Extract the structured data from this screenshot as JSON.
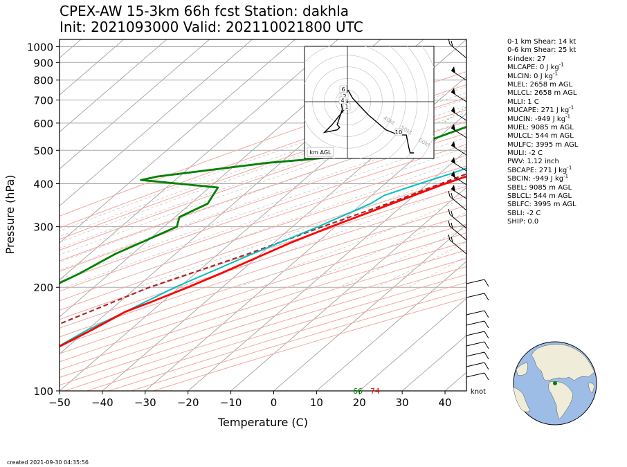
{
  "title_line1": "CPEX-AW 15-3km  66h fcst  Station: dakhla",
  "title_line2": "Init: 2021093000  Valid: 202110021800 UTC",
  "created": "created 2021-09-30 04:35:56",
  "stats": [
    {
      "text": "0-1 km Shear: 14 kt",
      "unit": ""
    },
    {
      "text": "0-6 km Shear: 25 kt",
      "unit": ""
    },
    {
      "text": "K-index: 27",
      "unit": ""
    },
    {
      "text": "MLCAPE: 0 J kg",
      "unit": "-1"
    },
    {
      "text": "MLCIN: 0 J kg",
      "unit": "-1"
    },
    {
      "text": "MLEL: 2658 m AGL",
      "unit": ""
    },
    {
      "text": "MLLCL: 2658 m AGL",
      "unit": ""
    },
    {
      "text": "MLLI: 1 C",
      "unit": ""
    },
    {
      "text": "MUCAPE: 271 J kg",
      "unit": "-1"
    },
    {
      "text": "MUCIN: -949 J kg",
      "unit": "-1"
    },
    {
      "text": "MUEL: 9085 m AGL",
      "unit": ""
    },
    {
      "text": "MULCL: 544 m AGL",
      "unit": ""
    },
    {
      "text": "MULFC: 3995 m AGL",
      "unit": ""
    },
    {
      "text": "MULI: -2 C",
      "unit": ""
    },
    {
      "text": "PWV: 1.12 inch",
      "unit": ""
    },
    {
      "text": "SBCAPE: 271 J kg",
      "unit": "-1"
    },
    {
      "text": "SBCIN: -949 J kg",
      "unit": "-1"
    },
    {
      "text": "SBEL: 9085 m AGL",
      "unit": ""
    },
    {
      "text": "SBLCL: 544 m AGL",
      "unit": ""
    },
    {
      "text": "SBLFC: 3995 m AGL",
      "unit": ""
    },
    {
      "text": "SBLI: -2 C",
      "unit": ""
    },
    {
      "text": "SHIP: 0.0",
      "unit": ""
    }
  ],
  "colors": {
    "temperature": "#ff0000",
    "dewpoint": "#008000",
    "wetbulb": "#00c0c0",
    "parcel": "#a52a2a",
    "isobar": "#a9a9a9",
    "isotherm": "#a9a9a9",
    "dry_adiabat": "#f4a8a0",
    "moist_adiabat": "#c8c8c8",
    "mixing_ratio": "#66bb66"
  },
  "chart_data": {
    "type": "skew-t",
    "xlabel": "Temperature (C)",
    "ylabel": "Pressure (hPa)",
    "xlim": [
      -50,
      45
    ],
    "ylim": [
      1050,
      100
    ],
    "y_scale": "log",
    "x_ticks": [
      "−50",
      "−40",
      "−30",
      "−20",
      "−10",
      "0",
      "10",
      "20",
      "30",
      "40"
    ],
    "x_tick_values": [
      -50,
      -40,
      -30,
      -20,
      -10,
      0,
      10,
      20,
      30,
      40
    ],
    "y_ticks": [
      "100",
      "200",
      "300",
      "400",
      "500",
      "600",
      "700",
      "800",
      "900",
      "1000"
    ],
    "y_tick_values": [
      100,
      200,
      300,
      400,
      500,
      600,
      700,
      800,
      900,
      1000
    ],
    "temperature": [
      [
        1001,
        23
      ],
      [
        998,
        31
      ],
      [
        990,
        34
      ],
      [
        970,
        35
      ],
      [
        950,
        34
      ],
      [
        925,
        32
      ],
      [
        900,
        29
      ],
      [
        850,
        24
      ],
      [
        800,
        19
      ],
      [
        750,
        15
      ],
      [
        700,
        10
      ],
      [
        650,
        6
      ],
      [
        600,
        2
      ],
      [
        550,
        -2
      ],
      [
        500,
        -6
      ],
      [
        450,
        -10
      ],
      [
        420,
        -13
      ],
      [
        400,
        -16
      ],
      [
        350,
        -23
      ],
      [
        300,
        -31
      ],
      [
        270,
        -36
      ],
      [
        250,
        -39
      ],
      [
        220,
        -44
      ],
      [
        200,
        -48
      ],
      [
        180,
        -53
      ],
      [
        170,
        -56
      ],
      [
        150,
        -59
      ],
      [
        130,
        -63
      ],
      [
        100,
        -70
      ]
    ],
    "dewpoint": [
      [
        1000,
        18
      ],
      [
        995,
        6
      ],
      [
        985,
        2
      ],
      [
        970,
        3
      ],
      [
        960,
        2
      ],
      [
        920,
        -1
      ],
      [
        900,
        -3
      ],
      [
        880,
        -5
      ],
      [
        850,
        -7
      ],
      [
        800,
        -11
      ],
      [
        750,
        -14
      ],
      [
        700,
        -17
      ],
      [
        600,
        -25
      ],
      [
        500,
        -35
      ],
      [
        470,
        -55
      ],
      [
        460,
        -63
      ],
      [
        420,
        -85
      ],
      [
        410,
        -88
      ],
      [
        390,
        -68
      ],
      [
        350,
        -66
      ],
      [
        320,
        -69
      ],
      [
        300,
        -67
      ],
      [
        270,
        -71
      ],
      [
        250,
        -74
      ],
      [
        220,
        -77
      ],
      [
        200,
        -80
      ],
      [
        180,
        -85
      ],
      [
        150,
        -89
      ],
      [
        130,
        -91
      ],
      [
        110,
        -92
      ],
      [
        100,
        -91
      ]
    ],
    "wetbulb": [
      [
        1000,
        21
      ],
      [
        990,
        20
      ],
      [
        950,
        17
      ],
      [
        900,
        14
      ],
      [
        850,
        11
      ],
      [
        800,
        8
      ],
      [
        700,
        2
      ],
      [
        600,
        -4
      ],
      [
        500,
        -10
      ],
      [
        460,
        -13
      ],
      [
        430,
        -17
      ],
      [
        400,
        -22
      ],
      [
        370,
        -27
      ],
      [
        350,
        -28
      ],
      [
        300,
        -34
      ],
      [
        250,
        -42
      ],
      [
        200,
        -51
      ],
      [
        170,
        -56
      ],
      [
        150,
        -60
      ],
      [
        130,
        -63
      ],
      [
        100,
        -70
      ]
    ],
    "parcel": [
      [
        1000,
        24
      ],
      [
        940,
        20
      ],
      [
        900,
        18
      ],
      [
        850,
        14
      ],
      [
        800,
        12
      ],
      [
        750,
        10
      ],
      [
        700,
        8
      ],
      [
        650,
        4
      ],
      [
        600,
        1
      ],
      [
        550,
        -2
      ],
      [
        500,
        -6
      ],
      [
        450,
        -11
      ],
      [
        400,
        -17
      ],
      [
        350,
        -24
      ],
      [
        300,
        -33
      ],
      [
        250,
        -43
      ],
      [
        200,
        -57
      ],
      [
        150,
        -70
      ],
      [
        100,
        -85
      ]
    ],
    "surface_labels": {
      "dewpoint": "66",
      "temperature": "74"
    },
    "wind_units": "knot",
    "hodograph": {
      "legend": "km AGL",
      "height_labels": [
        "1",
        "2",
        "4",
        "6",
        "10"
      ],
      "ring_labels": [
        "40kt",
        "50kt",
        "60kt"
      ],
      "trace": [
        [
          0.0,
          0.0
        ],
        [
          -0.4,
          -2.0
        ],
        [
          -2.0,
          -4.0
        ],
        [
          -6.0,
          -9.0
        ],
        [
          -8.0,
          -11.0
        ],
        [
          -9.0,
          -12.0
        ],
        [
          -4.0,
          -11.0
        ],
        [
          -3.0,
          -10.0
        ],
        [
          -4.0,
          -9.0
        ],
        [
          -2.0,
          -3.0
        ],
        [
          -2.5,
          0.2
        ],
        [
          -1.8,
          3.8
        ],
        [
          0.4,
          4.3
        ],
        [
          2.0,
          1.4
        ],
        [
          8.0,
          -5.0
        ],
        [
          15.0,
          -11.0
        ],
        [
          20.0,
          -13.0
        ],
        [
          23.0,
          -13.0
        ],
        [
          24.0,
          -18.0
        ],
        [
          24.5,
          -20.0
        ],
        [
          26.0,
          -20.0
        ]
      ]
    }
  }
}
